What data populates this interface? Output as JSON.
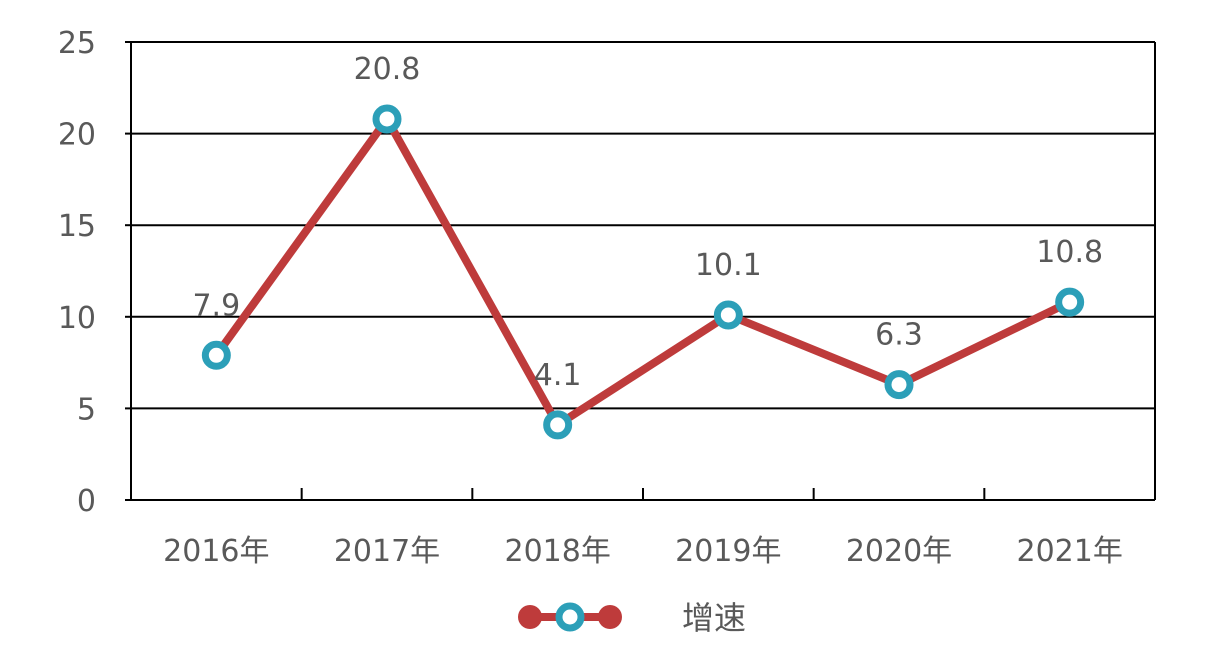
{
  "chart_data": {
    "type": "line",
    "categories": [
      "2016年",
      "2017年",
      "2018年",
      "2019年",
      "2020年",
      "2021年"
    ],
    "series": [
      {
        "name": "增速",
        "values": [
          7.9,
          20.8,
          4.1,
          10.1,
          6.3,
          10.8
        ]
      }
    ],
    "data_labels": [
      "7.9",
      "20.8",
      "4.1",
      "10.1",
      "6.3",
      "10.8"
    ],
    "y_ticks": [
      "0",
      "5",
      "10",
      "15",
      "20",
      "25"
    ],
    "ylim": [
      0,
      25
    ],
    "y_step": 5,
    "grid": true,
    "legend": {
      "position": "bottom",
      "label": "增速"
    },
    "colors": {
      "line": "#BE3B3B",
      "marker_ring": "#2C9FB8",
      "marker_center": "#ffffff",
      "grid": "#000000",
      "text": "#595959"
    }
  }
}
